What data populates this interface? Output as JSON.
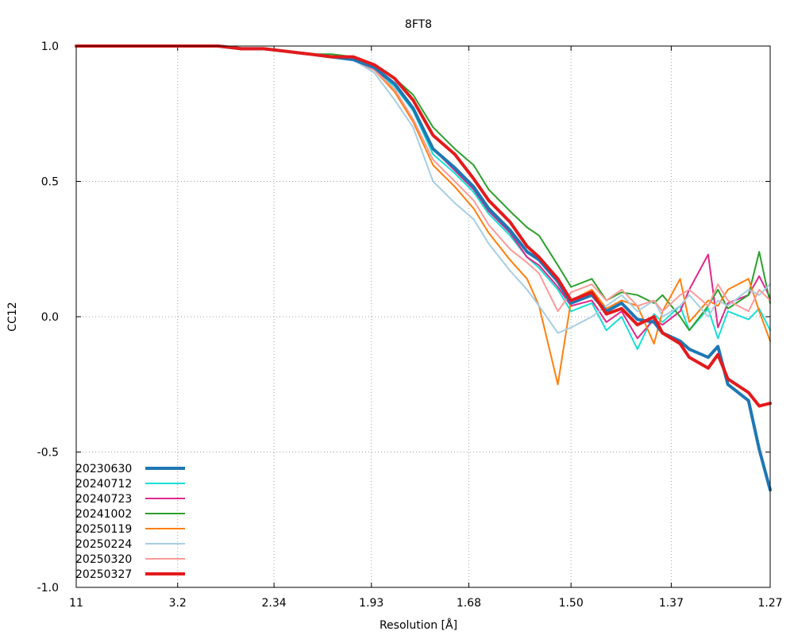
{
  "chart_data": {
    "type": "line",
    "title": "8FT8",
    "xlabel": "Resolution [Å]",
    "ylabel": "CC12",
    "ylim": [
      -1.0,
      1.0
    ],
    "xlim_resolution": [
      11,
      1.27
    ],
    "x_scale": "reciprocal-square (1/d²)",
    "grid": true,
    "legend_position": "bottom-left",
    "x_ticks": [
      "11",
      "3.2",
      "2.34",
      "1.93",
      "1.68",
      "1.50",
      "1.37",
      "1.27"
    ],
    "y_ticks": [
      "1.0",
      "0.5",
      "0.0",
      "-0.5",
      "-1.0"
    ],
    "x": [
      11.0,
      5.7,
      4.43,
      3.74,
      3.3,
      2.98,
      2.74,
      2.55,
      2.4,
      2.27,
      2.16,
      2.07,
      1.99,
      1.92,
      1.86,
      1.81,
      1.76,
      1.71,
      1.67,
      1.64,
      1.6,
      1.57,
      1.55,
      1.52,
      1.5,
      1.47,
      1.45,
      1.43,
      1.41,
      1.39,
      1.38,
      1.36,
      1.35,
      1.33,
      1.32,
      1.31,
      1.29,
      1.28,
      1.27
    ],
    "series": [
      {
        "name": "20230630",
        "color": "#1f77b4",
        "width": 4,
        "values": [
          1.0,
          1.0,
          1.0,
          1.0,
          1.0,
          1.0,
          1.0,
          0.99,
          0.99,
          0.98,
          0.97,
          0.96,
          0.95,
          0.92,
          0.86,
          0.77,
          0.62,
          0.55,
          0.48,
          0.4,
          0.32,
          0.24,
          0.21,
          0.13,
          0.05,
          0.08,
          0.02,
          0.05,
          -0.01,
          -0.02,
          -0.06,
          -0.09,
          -0.12,
          -0.15,
          -0.11,
          -0.25,
          -0.31,
          -0.49,
          -0.64
        ]
      },
      {
        "name": "20240712",
        "color": "#17e0d6",
        "width": 2,
        "values": [
          1.0,
          1.0,
          1.0,
          1.0,
          1.0,
          1.0,
          1.0,
          0.99,
          0.99,
          0.98,
          0.97,
          0.96,
          0.95,
          0.91,
          0.85,
          0.76,
          0.6,
          0.53,
          0.46,
          0.38,
          0.3,
          0.22,
          0.18,
          0.1,
          0.02,
          0.05,
          -0.05,
          0.0,
          -0.12,
          0.01,
          -0.02,
          0.04,
          -0.05,
          0.03,
          -0.08,
          0.02,
          -0.01,
          0.03,
          -0.05
        ]
      },
      {
        "name": "20240723",
        "color": "#e0288c",
        "width": 2,
        "values": [
          1.0,
          1.0,
          1.0,
          1.0,
          1.0,
          1.0,
          1.0,
          0.99,
          0.99,
          0.98,
          0.97,
          0.96,
          0.95,
          0.91,
          0.86,
          0.77,
          0.62,
          0.54,
          0.47,
          0.39,
          0.31,
          0.22,
          0.19,
          0.11,
          0.04,
          0.06,
          -0.02,
          0.02,
          -0.08,
          -0.01,
          -0.03,
          0.02,
          0.1,
          0.23,
          -0.04,
          0.05,
          0.08,
          0.15,
          0.07
        ]
      },
      {
        "name": "20241002",
        "color": "#2ca02c",
        "width": 2,
        "values": [
          1.0,
          1.0,
          1.0,
          1.0,
          1.0,
          1.0,
          1.0,
          0.99,
          0.99,
          0.98,
          0.97,
          0.97,
          0.96,
          0.93,
          0.88,
          0.82,
          0.7,
          0.62,
          0.56,
          0.47,
          0.39,
          0.33,
          0.3,
          0.19,
          0.11,
          0.14,
          0.06,
          0.09,
          0.08,
          0.05,
          0.08,
          0.0,
          -0.05,
          0.04,
          0.1,
          0.03,
          0.08,
          0.24,
          0.05
        ]
      },
      {
        "name": "20250119",
        "color": "#ff7f0e",
        "width": 2,
        "values": [
          1.0,
          1.0,
          1.0,
          1.0,
          1.0,
          1.0,
          1.0,
          0.99,
          0.99,
          0.98,
          0.97,
          0.96,
          0.95,
          0.91,
          0.83,
          0.72,
          0.56,
          0.48,
          0.4,
          0.31,
          0.21,
          0.14,
          0.04,
          -0.25,
          0.06,
          0.1,
          0.03,
          0.06,
          0.04,
          -0.1,
          0.02,
          0.14,
          -0.02,
          0.06,
          0.04,
          0.1,
          0.14,
          0.02,
          -0.09
        ]
      },
      {
        "name": "20250224",
        "color": "#a6cee3",
        "width": 2,
        "values": [
          1.0,
          1.0,
          1.0,
          1.0,
          1.0,
          1.0,
          1.0,
          0.99,
          0.99,
          0.98,
          0.97,
          0.96,
          0.95,
          0.9,
          0.8,
          0.7,
          0.5,
          0.42,
          0.36,
          0.27,
          0.17,
          0.1,
          0.04,
          -0.06,
          -0.04,
          0.0,
          0.04,
          0.08,
          0.02,
          0.06,
          0.0,
          0.04,
          0.08,
          0.0,
          0.06,
          0.04,
          0.1,
          0.08,
          0.12
        ]
      },
      {
        "name": "20250320",
        "color": "#fb9a99",
        "width": 2,
        "values": [
          1.0,
          1.0,
          1.0,
          1.0,
          1.0,
          1.0,
          1.0,
          0.99,
          0.99,
          0.98,
          0.97,
          0.96,
          0.95,
          0.91,
          0.84,
          0.73,
          0.58,
          0.5,
          0.43,
          0.34,
          0.25,
          0.2,
          0.16,
          0.02,
          0.09,
          0.12,
          0.06,
          0.1,
          0.04,
          0.06,
          0.02,
          0.08,
          0.1,
          0.04,
          0.12,
          0.06,
          0.02,
          0.1,
          0.06
        ]
      },
      {
        "name": "20250327",
        "color": "#e41a1c",
        "width": 4,
        "values": [
          1.0,
          1.0,
          1.0,
          1.0,
          1.0,
          1.0,
          1.0,
          0.99,
          0.99,
          0.98,
          0.97,
          0.96,
          0.96,
          0.93,
          0.88,
          0.8,
          0.67,
          0.6,
          0.51,
          0.43,
          0.35,
          0.26,
          0.22,
          0.14,
          0.06,
          0.09,
          0.01,
          0.03,
          -0.03,
          0.0,
          -0.06,
          -0.1,
          -0.15,
          -0.19,
          -0.14,
          -0.23,
          -0.28,
          -0.33,
          -0.32
        ]
      }
    ]
  }
}
